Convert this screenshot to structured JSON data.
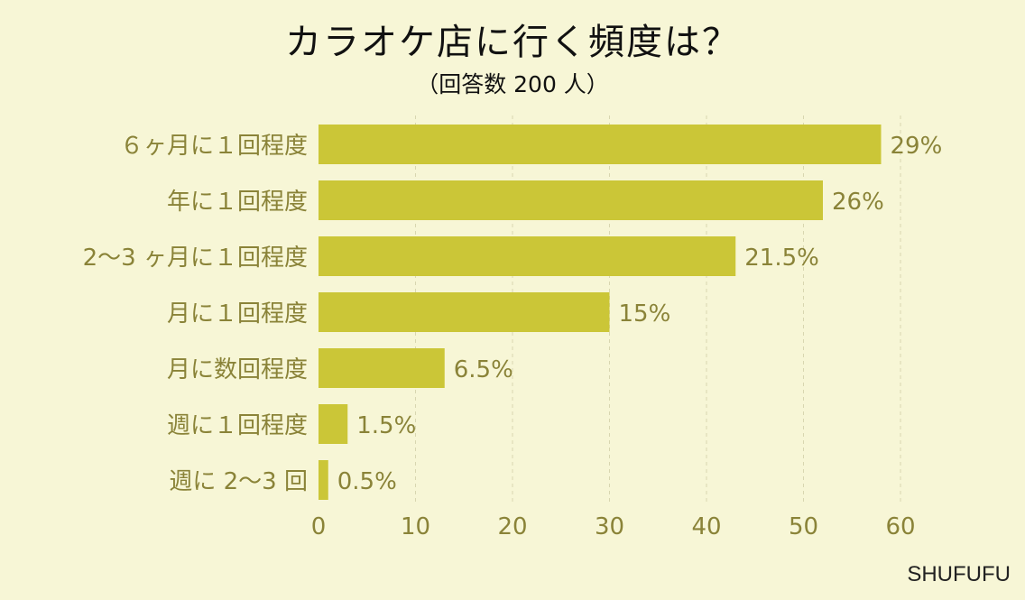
{
  "chart_data": {
    "type": "bar",
    "orientation": "horizontal",
    "title": "カラオケ店に行く頻度は？",
    "subtitle": "（回答数 200 人）",
    "categories": [
      "６ヶ月に１回程度",
      "年に１回程度",
      "2〜3 ヶ月に１回程度",
      "月に１回程度",
      "月に数回程度",
      "週に１回程度",
      "週に 2〜3 回"
    ],
    "values": [
      58,
      52,
      43,
      30,
      13,
      3,
      1
    ],
    "data_labels": [
      "29%",
      "26%",
      "21.5%",
      "15%",
      "6.5%",
      "1.5%",
      "0.5%"
    ],
    "xlim": [
      0,
      60
    ],
    "x_ticks": [
      0,
      10,
      20,
      30,
      40,
      50,
      60
    ],
    "grid": true,
    "bar_color": "#cbc637",
    "text_color": "#8a8338"
  },
  "brand": "SHUFUFU"
}
